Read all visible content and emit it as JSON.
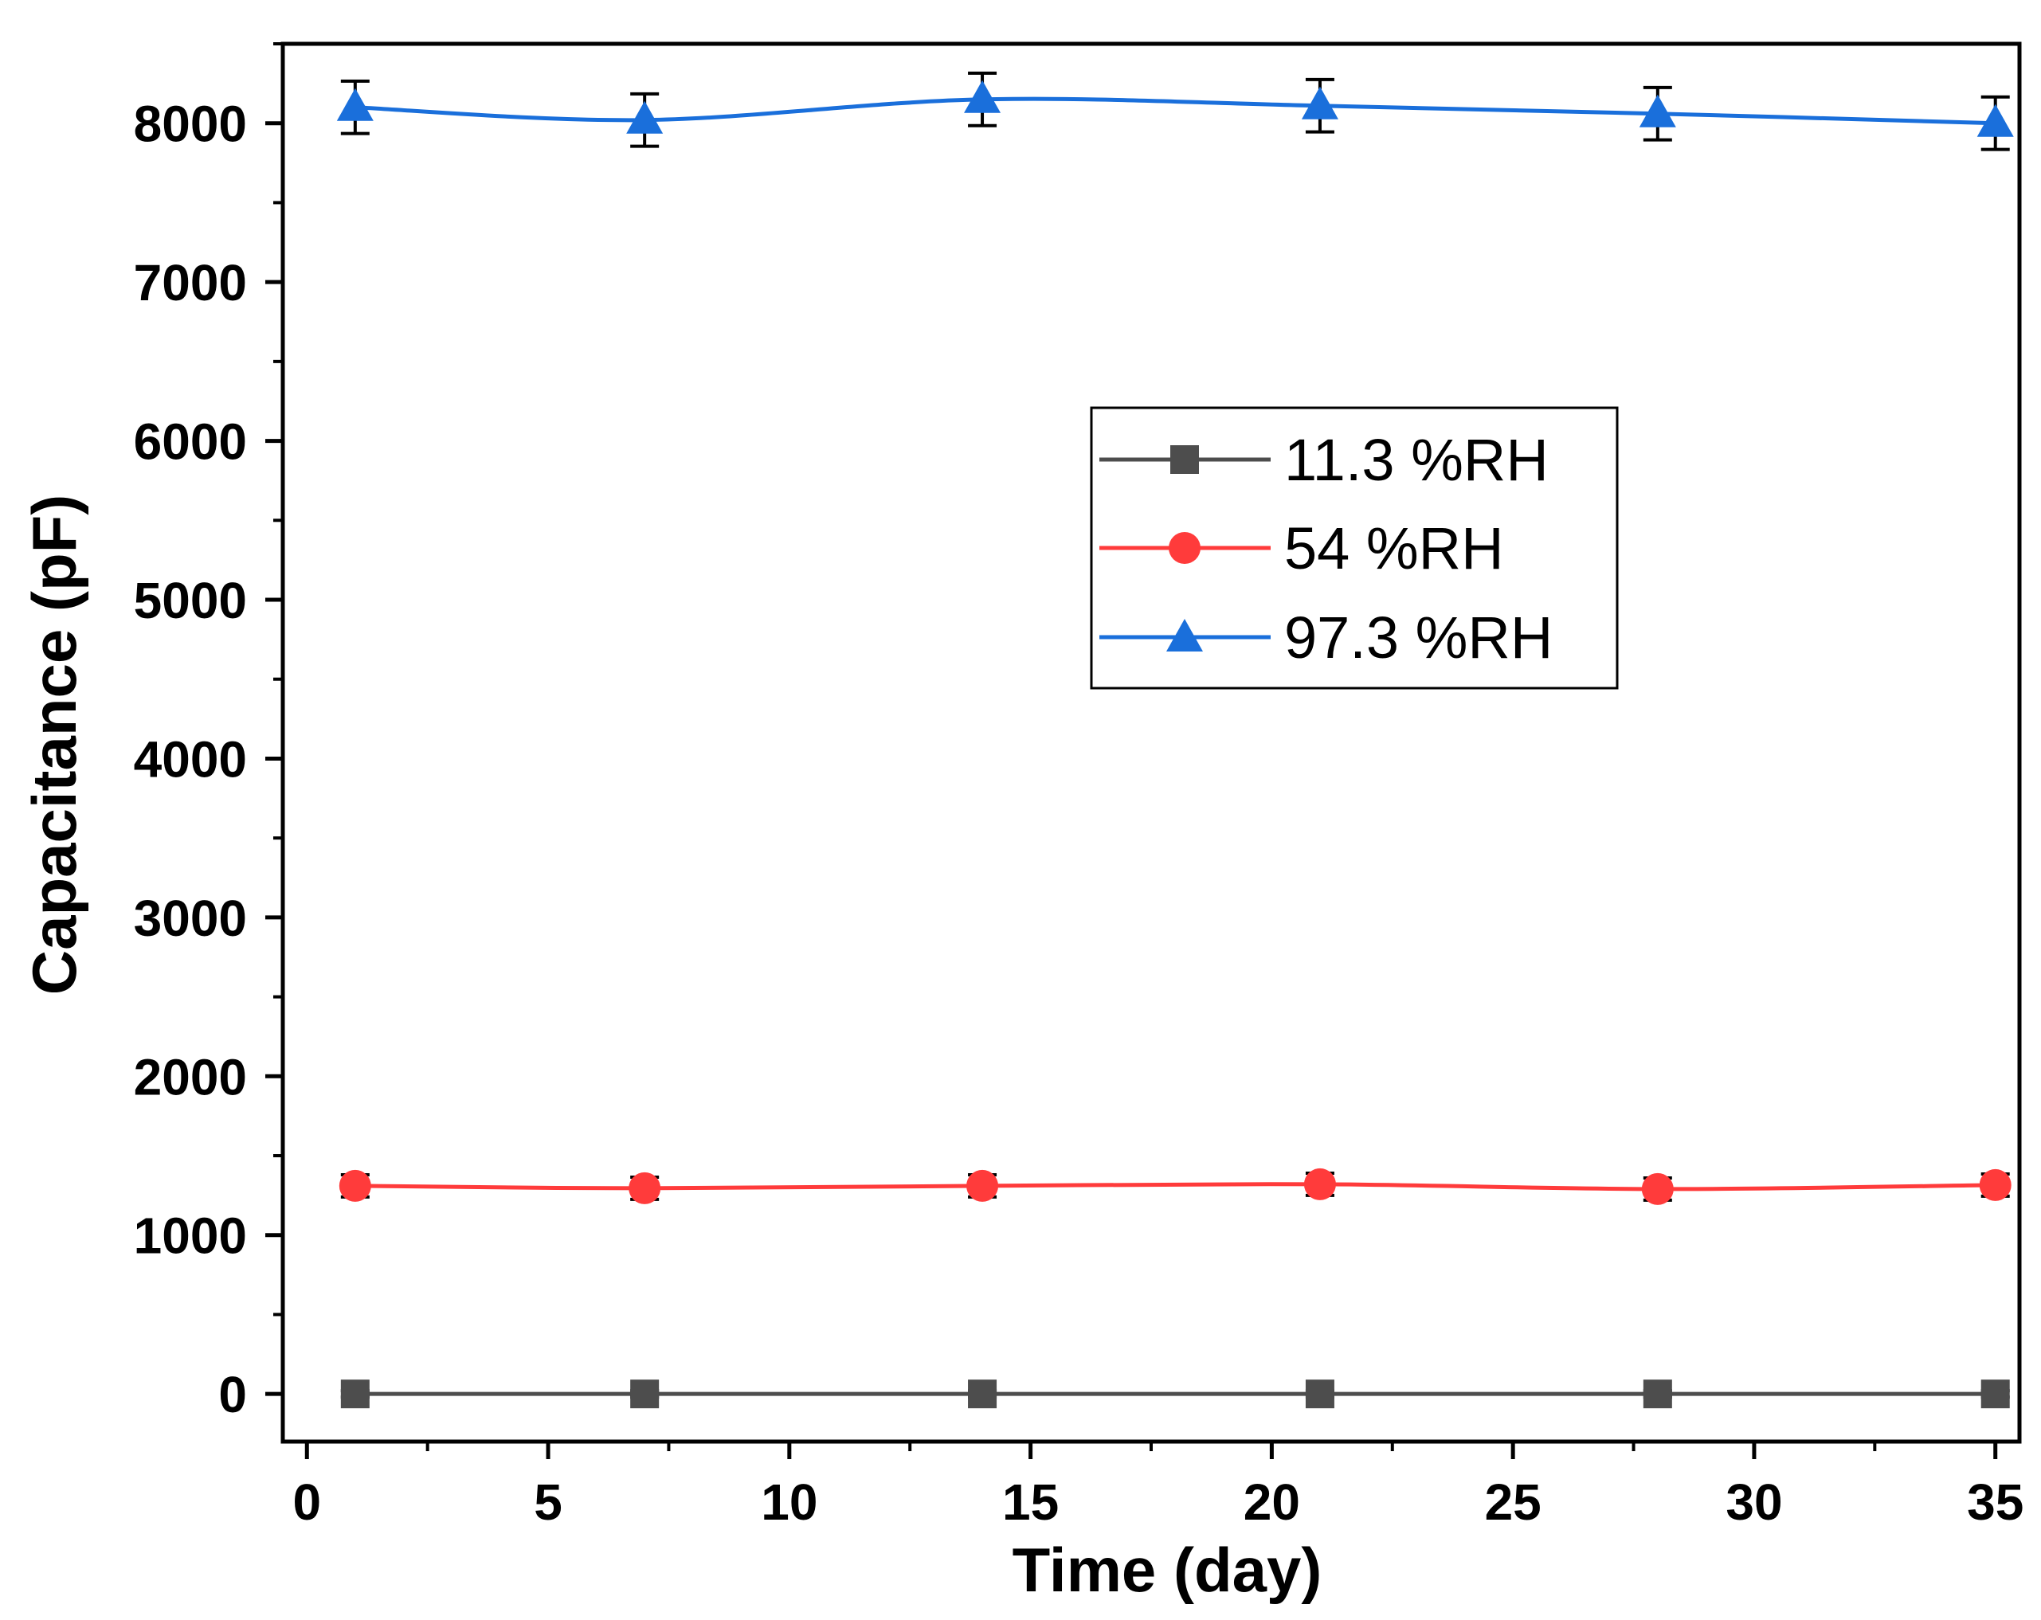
{
  "chart_data": {
    "type": "line",
    "title": "",
    "xlabel": "Time (day)",
    "ylabel": "Capacitance (pF)",
    "xlim": [
      -0.5,
      35.5
    ],
    "ylim": [
      -300,
      8500
    ],
    "x_ticks": [
      0,
      5,
      10,
      15,
      20,
      25,
      30,
      35
    ],
    "y_ticks": [
      0,
      1000,
      2000,
      3000,
      4000,
      5000,
      6000,
      7000,
      8000
    ],
    "x_minor_step": 2.5,
    "y_minor_step": 500,
    "grid": false,
    "legend_position": "center-right",
    "x": [
      1,
      7,
      14,
      21,
      28,
      35
    ],
    "series": [
      {
        "name": "11.3 %RH",
        "marker": "square",
        "color": "#4d4d4d",
        "values": [
          0,
          0,
          0,
          0,
          0,
          0
        ],
        "errors": [
          20,
          20,
          20,
          20,
          20,
          20
        ]
      },
      {
        "name": "54 %RH",
        "marker": "circle",
        "color": "#ff3b3b",
        "values": [
          1310,
          1295,
          1310,
          1320,
          1290,
          1315
        ],
        "errors": [
          70,
          70,
          70,
          70,
          70,
          70
        ]
      },
      {
        "name": "97.3 %RH",
        "marker": "triangle",
        "color": "#1a6fdb",
        "values": [
          8100,
          8020,
          8150,
          8110,
          8060,
          8000
        ],
        "errors": [
          165,
          165,
          165,
          165,
          165,
          165
        ]
      }
    ]
  }
}
